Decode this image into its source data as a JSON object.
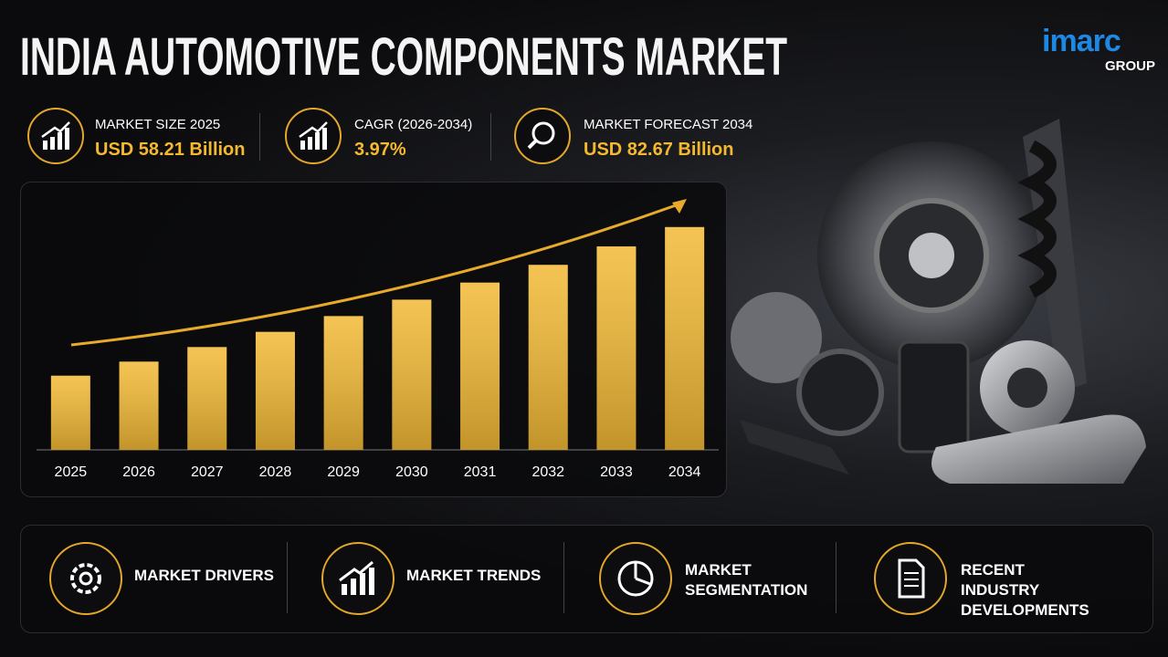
{
  "header": {
    "title": "INDIA AUTOMOTIVE COMPONENTS MARKET",
    "logo": "imarc",
    "logo_sub": "GROUP"
  },
  "stats": [
    {
      "label": "MARKET SIZE 2025",
      "value": "USD 58.21 Billion"
    },
    {
      "label": "CAGR (2026-2034)",
      "value": "3.97%"
    },
    {
      "label": "MARKET FORECAST 2034",
      "value": "USD 82.67 Billion"
    }
  ],
  "chart_data": {
    "type": "bar",
    "categories": [
      "2025",
      "2026",
      "2027",
      "2028",
      "2029",
      "2030",
      "2031",
      "2032",
      "2033",
      "2034"
    ],
    "values": [
      58.21,
      60.52,
      62.92,
      65.42,
      68.02,
      70.72,
      73.53,
      76.45,
      79.48,
      82.67
    ],
    "color": "#f2b935",
    "ylim": [
      46,
      88.5
    ]
  },
  "footer": [
    {
      "label": "MARKET DRIVERS"
    },
    {
      "label": "MARKET TRENDS"
    },
    {
      "label": "MARKET SEGMENTATION"
    },
    {
      "label": "RECENT INDUSTRY DEVELOPMENTS"
    }
  ]
}
